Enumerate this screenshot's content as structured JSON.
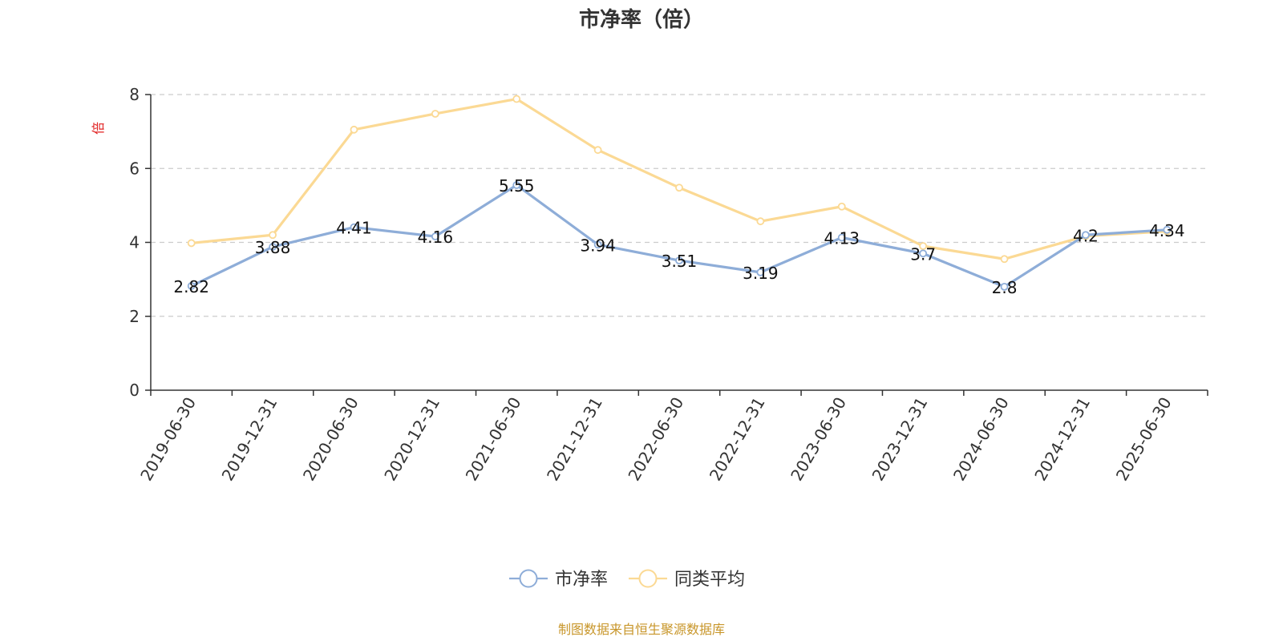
{
  "chart_data": {
    "type": "line",
    "title": "市净率（倍）",
    "y_unit": "倍",
    "categories": [
      "2019-06-30",
      "2019-12-31",
      "2020-06-30",
      "2020-12-31",
      "2021-06-30",
      "2021-12-31",
      "2022-06-30",
      "2022-12-31",
      "2023-06-30",
      "2023-12-31",
      "2024-06-30",
      "2024-12-31",
      "2025-06-30"
    ],
    "ylim": [
      0,
      8
    ],
    "yticks": [
      0,
      2,
      4,
      6,
      8
    ],
    "grid": true,
    "legend_position": "bottom",
    "series": [
      {
        "name": "市净率",
        "color": "#8eadd8",
        "values": [
          2.82,
          3.88,
          4.41,
          4.16,
          5.55,
          3.94,
          3.51,
          3.19,
          4.13,
          3.7,
          2.8,
          4.2,
          4.34
        ],
        "labels": [
          "2.82",
          "3.88",
          "4.41",
          "4.16",
          "5.55",
          "3.94",
          "3.51",
          "3.19",
          "4.13",
          "3.7",
          "2.8",
          "4.2",
          "4.34"
        ]
      },
      {
        "name": "同类平均",
        "color": "#fbd994",
        "values": [
          3.98,
          4.2,
          7.05,
          7.48,
          7.88,
          6.5,
          5.48,
          4.57,
          4.97,
          3.9,
          3.55,
          4.17,
          4.3
        ]
      }
    ]
  },
  "source_note": "制图数据来自恒生聚源数据库"
}
